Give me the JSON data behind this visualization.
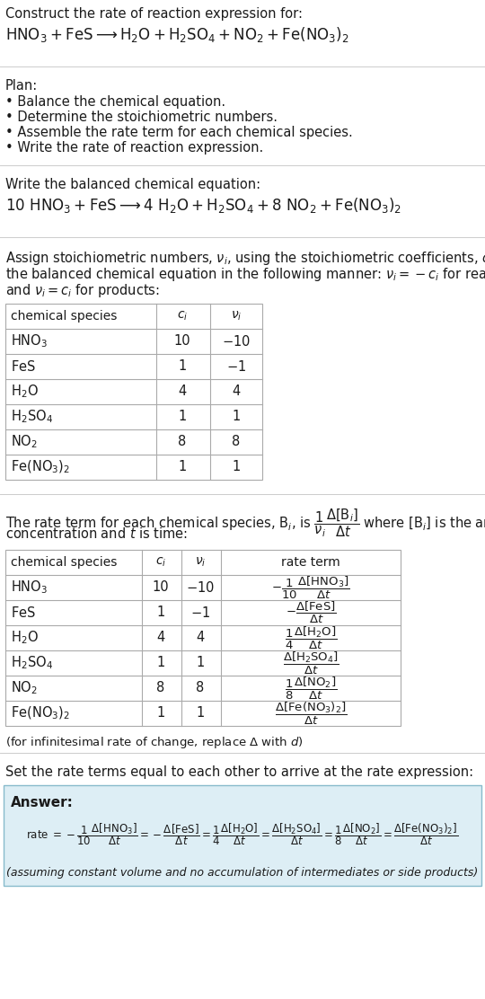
{
  "bg_color": "#ffffff",
  "text_color": "#1a1a1a",
  "table_border_color": "#aaaaaa",
  "sep_color": "#cccccc",
  "answer_box_color": "#ddeef5",
  "answer_box_border": "#88bbcc",
  "sec1_line1": "Construct the rate of reaction expression for:",
  "sec1_rxn": "$\\mathrm{HNO_3 + FeS \\longrightarrow H_2O + H_2SO_4 + NO_2 + Fe(NO_3)_2}$",
  "plan_header": "Plan:",
  "plan_bullets": [
    "\\u2022 Balance the chemical equation.",
    "\\u2022 Determine the stoichiometric numbers.",
    "\\u2022 Assemble the rate term for each chemical species.",
    "\\u2022 Write the rate of reaction expression."
  ],
  "balanced_header": "Write the balanced chemical equation:",
  "balanced_rxn": "$\\mathrm{10\\ HNO_3 + FeS \\longrightarrow 4\\ H_2O + H_2SO_4 + 8\\ NO_2 + Fe(NO_3)_2}$",
  "stoich_lines": [
    "Assign stoichiometric numbers, $\\nu_i$, using the stoichiometric coefficients, $c_i$, from",
    "the balanced chemical equation in the following manner: $\\nu_i = -c_i$ for reactants",
    "and $\\nu_i = c_i$ for products:"
  ],
  "t1_headers": [
    "chemical species",
    "$c_i$",
    "$\\nu_i$"
  ],
  "t1_rows": [
    [
      "$\\mathrm{HNO_3}$",
      "10",
      "$-10$"
    ],
    [
      "$\\mathrm{FeS}$",
      "1",
      "$-1$"
    ],
    [
      "$\\mathrm{H_2O}$",
      "4",
      "4"
    ],
    [
      "$\\mathrm{H_2SO_4}$",
      "1",
      "1"
    ],
    [
      "$\\mathrm{NO_2}$",
      "8",
      "8"
    ],
    [
      "$\\mathrm{Fe(NO_3)_2}$",
      "1",
      "1"
    ]
  ],
  "rate_lines": [
    "The rate term for each chemical species, B$_i$, is $\\dfrac{1}{\\nu_i}\\dfrac{\\Delta[\\mathrm{B}_i]}{\\Delta t}$ where [B$_i$] is the amount",
    "concentration and $t$ is time:"
  ],
  "t2_headers": [
    "chemical species",
    "$c_i$",
    "$\\nu_i$",
    "rate term"
  ],
  "t2_rows": [
    [
      "$\\mathrm{HNO_3}$",
      "10",
      "$-10$",
      "$-\\dfrac{1}{10}\\dfrac{\\Delta[\\mathrm{HNO_3}]}{\\Delta t}$"
    ],
    [
      "$\\mathrm{FeS}$",
      "1",
      "$-1$",
      "$-\\dfrac{\\Delta[\\mathrm{FeS}]}{\\Delta t}$"
    ],
    [
      "$\\mathrm{H_2O}$",
      "4",
      "4",
      "$\\dfrac{1}{4}\\dfrac{\\Delta[\\mathrm{H_2O}]}{\\Delta t}$"
    ],
    [
      "$\\mathrm{H_2SO_4}$",
      "1",
      "1",
      "$\\dfrac{\\Delta[\\mathrm{H_2SO_4}]}{\\Delta t}$"
    ],
    [
      "$\\mathrm{NO_2}$",
      "8",
      "8",
      "$\\dfrac{1}{8}\\dfrac{\\Delta[\\mathrm{NO_2}]}{\\Delta t}$"
    ],
    [
      "$\\mathrm{Fe(NO_3)_2}$",
      "1",
      "1",
      "$\\dfrac{\\Delta[\\mathrm{Fe(NO_3)_2}]}{\\Delta t}$"
    ]
  ],
  "infinitesimal": "(for infinitesimal rate of change, replace Δ with $d$)",
  "set_equal_text": "Set the rate terms equal to each other to arrive at the rate expression:",
  "answer_label": "Answer:",
  "rate_eq_parts": [
    "rate $= -\\dfrac{1}{10}\\dfrac{\\Delta[\\mathrm{HNO_3}]}{\\Delta t}$",
    "$= -\\dfrac{\\Delta[\\mathrm{FeS}]}{\\Delta t}$",
    "$= \\dfrac{1}{4}\\dfrac{\\Delta[\\mathrm{H_2O}]}{\\Delta t}$",
    "$= \\dfrac{\\Delta[\\mathrm{H_2SO_4}]}{\\Delta t}$",
    "$= \\dfrac{1}{8}\\dfrac{\\Delta[\\mathrm{NO_2}]}{\\Delta t}$",
    "$= \\dfrac{\\Delta[\\mathrm{Fe(NO_3)_2}]}{\\Delta t}$"
  ],
  "assuming": "(assuming constant volume and no accumulation of intermediates or side products)"
}
